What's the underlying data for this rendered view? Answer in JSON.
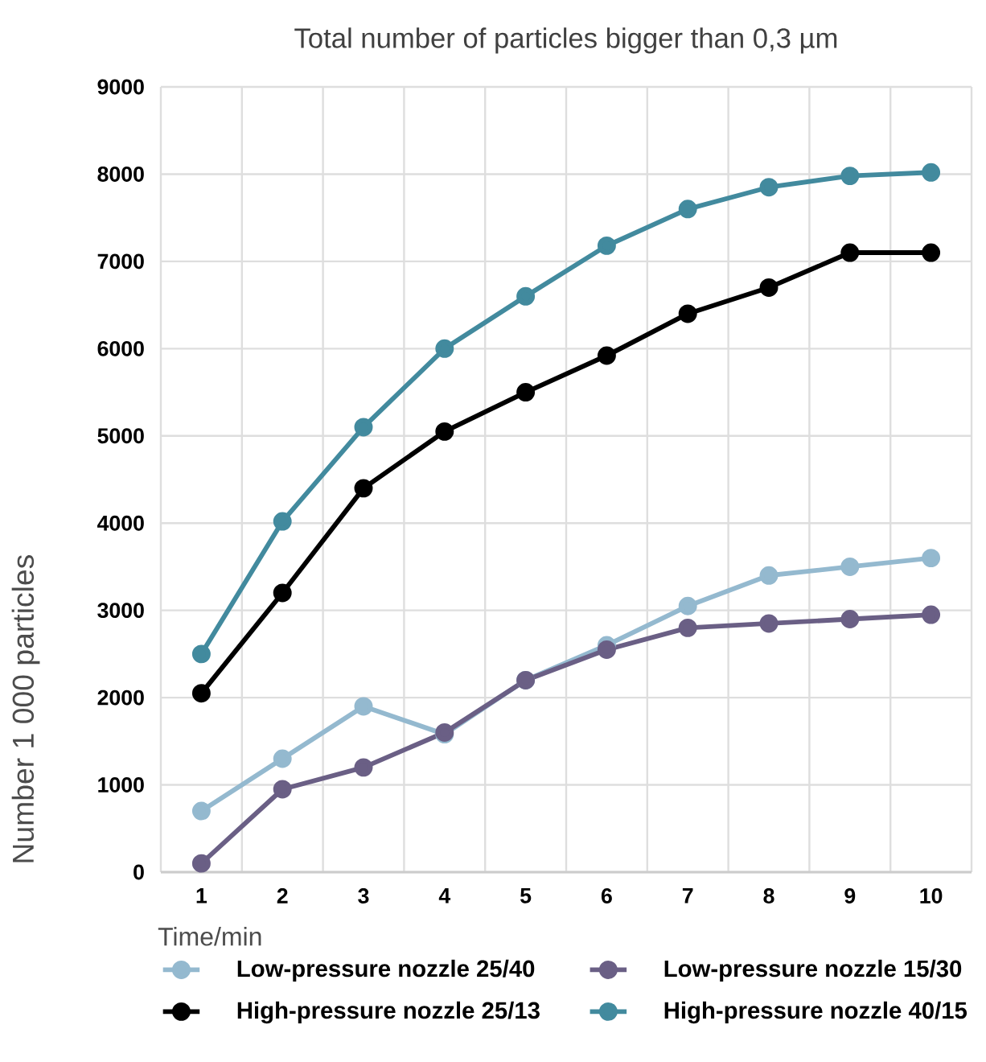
{
  "chart_data": {
    "type": "line",
    "title": "Total number of particles bigger than 0,3 µm",
    "xlabel": "Time/min",
    "ylabel": "Number 1 000 particles",
    "categories": [
      "1",
      "2",
      "3",
      "4",
      "5",
      "6",
      "7",
      "8",
      "9",
      "10"
    ],
    "series": [
      {
        "name": "Low-pressure nozzle 25/40",
        "color": "#94b9cf",
        "values": [
          700,
          1300,
          1900,
          1580,
          2200,
          2600,
          3050,
          3400,
          3500,
          3600
        ]
      },
      {
        "name": "Low-pressure nozzle 15/30",
        "color": "#6a5f85",
        "values": [
          100,
          950,
          1200,
          1600,
          2200,
          2550,
          2800,
          2850,
          2900,
          2950
        ]
      },
      {
        "name": "High-pressure nozzle 25/13",
        "color": "#000000",
        "values": [
          2050,
          3200,
          4400,
          5050,
          5500,
          5920,
          6400,
          6700,
          7100,
          7100
        ]
      },
      {
        "name": "High-pressure nozzle 40/15",
        "color": "#428a9e",
        "values": [
          2500,
          4020,
          5100,
          6000,
          6600,
          7180,
          7600,
          7850,
          7980,
          8020
        ]
      }
    ],
    "ylim": [
      0,
      9000
    ],
    "yticks": [
      0,
      1000,
      2000,
      3000,
      4000,
      5000,
      6000,
      7000,
      8000,
      9000
    ],
    "grid": true,
    "legend": "bottom",
    "marker": "circle",
    "line_style": "solid"
  }
}
